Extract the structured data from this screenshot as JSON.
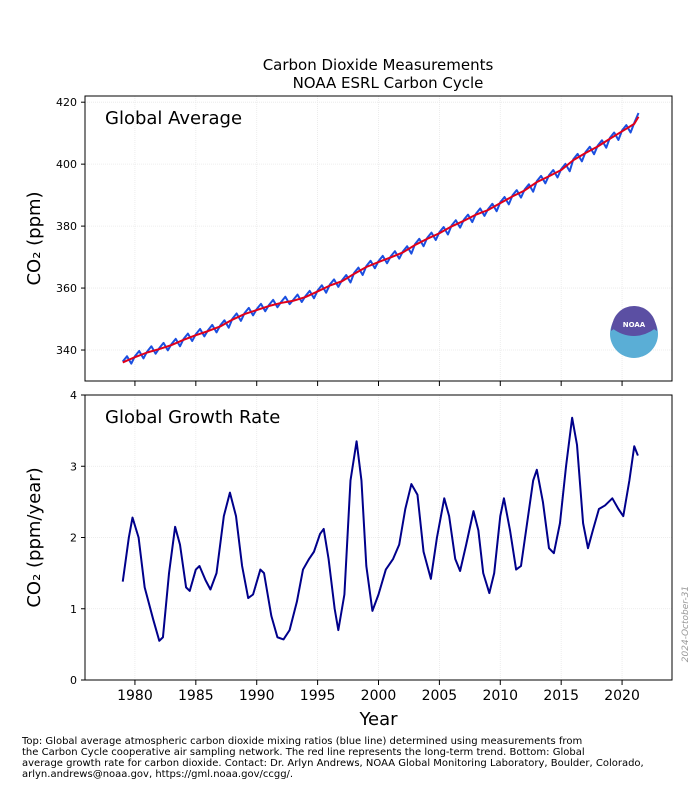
{
  "title": "Carbon Dioxide Measurements",
  "subtitle": "NOAA ESRL Carbon Cycle",
  "logo": "NOAA",
  "date": "2024-October-31",
  "caption": [
    "Top:  Global average atmospheric carbon dioxide mixing ratios (blue line) determined using measurements from",
    "the Carbon Cycle cooperative air sampling network.  The red line represents the long-term trend.  Bottom:  Global",
    "average growth rate for carbon dioxide.  Contact:  Dr. Arlyn Andrews, NOAA Global Monitoring Laboratory, Boulder, Colorado,",
    "arlyn.andrews@noaa.gov, https://gml.noaa.gov/ccgg/."
  ],
  "chart_data": [
    {
      "type": "line",
      "label": "Global Average",
      "ylabel": "CO₂ (ppm)",
      "xlim": [
        1975.9,
        2024.1
      ],
      "xticks": [
        1980,
        1985,
        1990,
        1995,
        2000,
        2005,
        2010,
        2015,
        2020
      ],
      "ylim": [
        330,
        422
      ],
      "yticks": [
        340,
        360,
        380,
        400,
        420
      ],
      "grid": true,
      "series": [
        {
          "color": "#1a4fe0",
          "x": [
            1979,
            1979.35,
            1979.7,
            1980,
            1980.35,
            1980.7,
            1981,
            1981.35,
            1981.7,
            1982,
            1982.35,
            1982.7,
            1983,
            1983.35,
            1983.7,
            1984,
            1984.35,
            1984.7,
            1985,
            1985.35,
            1985.7,
            1986,
            1986.35,
            1986.7,
            1987,
            1987.35,
            1987.7,
            1988,
            1988.35,
            1988.7,
            1989,
            1989.35,
            1989.7,
            1990,
            1990.35,
            1990.7,
            1991,
            1991.35,
            1991.7,
            1992,
            1992.35,
            1992.7,
            1993,
            1993.35,
            1993.7,
            1994,
            1994.35,
            1994.7,
            1995,
            1995.35,
            1995.7,
            1996,
            1996.35,
            1996.7,
            1997,
            1997.35,
            1997.7,
            1998,
            1998.35,
            1998.7,
            1999,
            1999.35,
            1999.7,
            2000,
            2000.35,
            2000.7,
            2001,
            2001.35,
            2001.7,
            2002,
            2002.35,
            2002.7,
            2003,
            2003.35,
            2003.7,
            2004,
            2004.35,
            2004.7,
            2005,
            2005.35,
            2005.7,
            2006,
            2006.35,
            2006.7,
            2007,
            2007.35,
            2007.7,
            2008,
            2008.35,
            2008.7,
            2009,
            2009.35,
            2009.7,
            2010,
            2010.35,
            2010.7,
            2011,
            2011.35,
            2011.7,
            2012,
            2012.35,
            2012.7,
            2013,
            2013.35,
            2013.7,
            2014,
            2014.35,
            2014.7,
            2015,
            2015.35,
            2015.7,
            2016,
            2016.35,
            2016.7,
            2017,
            2017.35,
            2017.7,
            2018,
            2018.35,
            2018.7,
            2019,
            2019.35,
            2019.7,
            2020,
            2020.35,
            2020.7,
            2021,
            2021.35
          ],
          "values": [
            336.3,
            338.0,
            335.6,
            338.0,
            339.7,
            337.3,
            339.5,
            341.2,
            338.8,
            340.6,
            342.3,
            339.9,
            341.9,
            343.6,
            341.2,
            343.6,
            345.3,
            342.9,
            345.1,
            346.8,
            344.4,
            346.4,
            348.1,
            345.7,
            347.9,
            349.6,
            347.2,
            350.1,
            351.8,
            349.4,
            351.9,
            353.6,
            351.2,
            353.2,
            354.9,
            352.5,
            354.5,
            356.2,
            353.8,
            355.5,
            357.2,
            354.8,
            356.2,
            357.9,
            355.5,
            357.4,
            359.1,
            356.7,
            359.2,
            360.9,
            358.5,
            361.1,
            362.8,
            360.4,
            362.5,
            364.2,
            361.8,
            364.9,
            366.6,
            364.2,
            367.1,
            368.8,
            366.4,
            368.7,
            370.4,
            368.0,
            370.2,
            371.9,
            369.5,
            371.8,
            373.5,
            371.1,
            374.2,
            375.9,
            373.5,
            376.2,
            377.9,
            375.5,
            378.0,
            379.7,
            377.3,
            380.2,
            381.9,
            379.5,
            382.0,
            383.7,
            381.3,
            384.0,
            385.7,
            383.3,
            385.5,
            387.2,
            384.8,
            387.7,
            389.4,
            387.0,
            389.9,
            391.6,
            389.2,
            391.8,
            393.5,
            391.1,
            394.5,
            396.2,
            393.8,
            396.4,
            398.1,
            395.7,
            398.4,
            400.1,
            397.7,
            401.6,
            403.3,
            400.9,
            403.9,
            405.6,
            403.2,
            406.0,
            407.7,
            405.3,
            408.5,
            410.2,
            407.8,
            410.9,
            412.6,
            410.2,
            413.3,
            416.5
          ]
        },
        {
          "color": "#e0001a",
          "x": [
            1979,
            1980,
            1981,
            1982,
            1983,
            1984,
            1985,
            1986,
            1987,
            1988,
            1989,
            1990,
            1991,
            1992,
            1993,
            1994,
            1995,
            1996,
            1997,
            1998,
            1999,
            2000,
            2001,
            2002,
            2003,
            2004,
            2005,
            2006,
            2007,
            2008,
            2009,
            2010,
            2011,
            2012,
            2013,
            2014,
            2015,
            2016,
            2017,
            2018,
            2019,
            2020,
            2021,
            2021.35
          ],
          "values": [
            336.0,
            337.7,
            339.2,
            340.3,
            341.6,
            343.3,
            344.8,
            346.1,
            347.6,
            349.8,
            351.6,
            352.9,
            354.2,
            355.2,
            355.9,
            357.1,
            358.9,
            360.8,
            362.2,
            364.6,
            366.8,
            368.4,
            369.9,
            371.5,
            373.9,
            375.9,
            377.7,
            379.9,
            381.7,
            383.7,
            385.2,
            387.4,
            389.6,
            391.5,
            394.2,
            396.1,
            398.1,
            401.3,
            403.6,
            405.7,
            408.2,
            410.6,
            413.0,
            415.3
          ]
        }
      ]
    },
    {
      "type": "line",
      "label": "Global Growth Rate",
      "ylabel": "CO₂ (ppm/year)",
      "xlabel": "Year",
      "xlim": [
        1975.9,
        2024.1
      ],
      "xticks": [
        1980,
        1985,
        1990,
        1995,
        2000,
        2005,
        2010,
        2015,
        2020
      ],
      "ylim": [
        0,
        4
      ],
      "yticks": [
        0,
        1,
        2,
        3,
        4
      ],
      "grid": true,
      "series": [
        {
          "color": "#00008b",
          "x": [
            1979.0,
            1979.5,
            1979.8,
            1980.3,
            1980.8,
            1981.5,
            1982.0,
            1982.3,
            1982.8,
            1983.3,
            1983.7,
            1984.2,
            1984.5,
            1985.0,
            1985.3,
            1985.8,
            1986.2,
            1986.7,
            1987.3,
            1987.8,
            1988.3,
            1988.8,
            1989.3,
            1989.7,
            1990.3,
            1990.6,
            1991.2,
            1991.7,
            1992.2,
            1992.7,
            1993.3,
            1993.8,
            1994.3,
            1994.7,
            1995.2,
            1995.5,
            1995.9,
            1996.4,
            1996.7,
            1997.2,
            1997.7,
            1998.2,
            1998.6,
            1999.0,
            1999.5,
            2000.0,
            2000.6,
            2001.2,
            2001.7,
            2002.2,
            2002.7,
            2003.2,
            2003.7,
            2004.3,
            2004.8,
            2005.4,
            2005.8,
            2006.3,
            2006.7,
            2007.2,
            2007.8,
            2008.2,
            2008.6,
            2009.1,
            2009.5,
            2010.0,
            2010.3,
            2010.8,
            2011.3,
            2011.7,
            2012.2,
            2012.7,
            2013.0,
            2013.5,
            2014.0,
            2014.4,
            2014.9,
            2015.4,
            2015.9,
            2016.3,
            2016.8,
            2017.2,
            2017.6,
            2018.1,
            2018.6,
            2019.2,
            2019.7,
            2020.1,
            2020.6,
            2021.0,
            2021.3
          ],
          "values": [
            1.38,
            2.0,
            2.28,
            2.0,
            1.3,
            0.85,
            0.55,
            0.6,
            1.5,
            2.15,
            1.9,
            1.3,
            1.25,
            1.55,
            1.6,
            1.4,
            1.27,
            1.5,
            2.3,
            2.63,
            2.3,
            1.6,
            1.15,
            1.2,
            1.55,
            1.5,
            0.9,
            0.6,
            0.57,
            0.7,
            1.1,
            1.55,
            1.7,
            1.8,
            2.05,
            2.12,
            1.7,
            1.0,
            0.7,
            1.2,
            2.8,
            3.35,
            2.8,
            1.6,
            0.97,
            1.2,
            1.55,
            1.7,
            1.9,
            2.4,
            2.75,
            2.6,
            1.8,
            1.42,
            2.0,
            2.55,
            2.3,
            1.7,
            1.53,
            1.9,
            2.37,
            2.1,
            1.5,
            1.22,
            1.5,
            2.3,
            2.55,
            2.1,
            1.55,
            1.6,
            2.2,
            2.8,
            2.95,
            2.5,
            1.85,
            1.78,
            2.2,
            3.0,
            3.68,
            3.3,
            2.2,
            1.85,
            2.1,
            2.4,
            2.45,
            2.55,
            2.4,
            2.3,
            2.8,
            3.28,
            3.15
          ]
        }
      ]
    }
  ]
}
